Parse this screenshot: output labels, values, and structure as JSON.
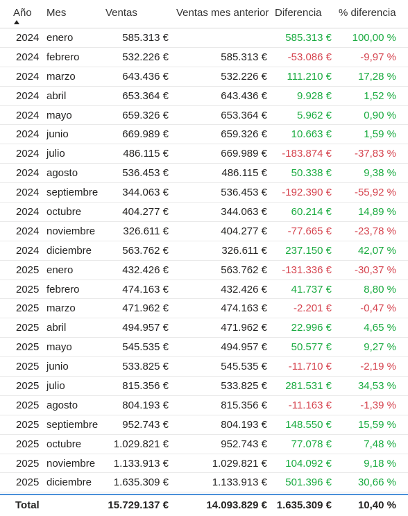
{
  "headers": {
    "ano": "Año",
    "mes": "Mes",
    "ventas": "Ventas",
    "ventas_anterior": "Ventas mes anterior",
    "diferencia": "Diferencia",
    "pct_diferencia": "% diferencia"
  },
  "rows": [
    {
      "ano": "2024",
      "mes": "enero",
      "ventas": "585.313 €",
      "anterior": "",
      "dif": "585.313 €",
      "pct": "100,00 %",
      "sign": "pos"
    },
    {
      "ano": "2024",
      "mes": "febrero",
      "ventas": "532.226 €",
      "anterior": "585.313 €",
      "dif": "-53.086 €",
      "pct": "-9,97 %",
      "sign": "neg"
    },
    {
      "ano": "2024",
      "mes": "marzo",
      "ventas": "643.436 €",
      "anterior": "532.226 €",
      "dif": "111.210 €",
      "pct": "17,28 %",
      "sign": "pos"
    },
    {
      "ano": "2024",
      "mes": "abril",
      "ventas": "653.364 €",
      "anterior": "643.436 €",
      "dif": "9.928 €",
      "pct": "1,52 %",
      "sign": "pos"
    },
    {
      "ano": "2024",
      "mes": "mayo",
      "ventas": "659.326 €",
      "anterior": "653.364 €",
      "dif": "5.962 €",
      "pct": "0,90 %",
      "sign": "pos"
    },
    {
      "ano": "2024",
      "mes": "junio",
      "ventas": "669.989 €",
      "anterior": "659.326 €",
      "dif": "10.663 €",
      "pct": "1,59 %",
      "sign": "pos"
    },
    {
      "ano": "2024",
      "mes": "julio",
      "ventas": "486.115 €",
      "anterior": "669.989 €",
      "dif": "-183.874 €",
      "pct": "-37,83 %",
      "sign": "neg"
    },
    {
      "ano": "2024",
      "mes": "agosto",
      "ventas": "536.453 €",
      "anterior": "486.115 €",
      "dif": "50.338 €",
      "pct": "9,38 %",
      "sign": "pos"
    },
    {
      "ano": "2024",
      "mes": "septiembre",
      "ventas": "344.063 €",
      "anterior": "536.453 €",
      "dif": "-192.390 €",
      "pct": "-55,92 %",
      "sign": "neg"
    },
    {
      "ano": "2024",
      "mes": "octubre",
      "ventas": "404.277 €",
      "anterior": "344.063 €",
      "dif": "60.214 €",
      "pct": "14,89 %",
      "sign": "pos"
    },
    {
      "ano": "2024",
      "mes": "noviembre",
      "ventas": "326.611 €",
      "anterior": "404.277 €",
      "dif": "-77.665 €",
      "pct": "-23,78 %",
      "sign": "neg"
    },
    {
      "ano": "2024",
      "mes": "diciembre",
      "ventas": "563.762 €",
      "anterior": "326.611 €",
      "dif": "237.150 €",
      "pct": "42,07 %",
      "sign": "pos"
    },
    {
      "ano": "2025",
      "mes": "enero",
      "ventas": "432.426 €",
      "anterior": "563.762 €",
      "dif": "-131.336 €",
      "pct": "-30,37 %",
      "sign": "neg"
    },
    {
      "ano": "2025",
      "mes": "febrero",
      "ventas": "474.163 €",
      "anterior": "432.426 €",
      "dif": "41.737 €",
      "pct": "8,80 %",
      "sign": "pos"
    },
    {
      "ano": "2025",
      "mes": "marzo",
      "ventas": "471.962 €",
      "anterior": "474.163 €",
      "dif": "-2.201 €",
      "pct": "-0,47 %",
      "sign": "neg"
    },
    {
      "ano": "2025",
      "mes": "abril",
      "ventas": "494.957 €",
      "anterior": "471.962 €",
      "dif": "22.996 €",
      "pct": "4,65 %",
      "sign": "pos"
    },
    {
      "ano": "2025",
      "mes": "mayo",
      "ventas": "545.535 €",
      "anterior": "494.957 €",
      "dif": "50.577 €",
      "pct": "9,27 %",
      "sign": "pos"
    },
    {
      "ano": "2025",
      "mes": "junio",
      "ventas": "533.825 €",
      "anterior": "545.535 €",
      "dif": "-11.710 €",
      "pct": "-2,19 %",
      "sign": "neg"
    },
    {
      "ano": "2025",
      "mes": "julio",
      "ventas": "815.356 €",
      "anterior": "533.825 €",
      "dif": "281.531 €",
      "pct": "34,53 %",
      "sign": "pos"
    },
    {
      "ano": "2025",
      "mes": "agosto",
      "ventas": "804.193 €",
      "anterior": "815.356 €",
      "dif": "-11.163 €",
      "pct": "-1,39 %",
      "sign": "neg"
    },
    {
      "ano": "2025",
      "mes": "septiembre",
      "ventas": "952.743 €",
      "anterior": "804.193 €",
      "dif": "148.550 €",
      "pct": "15,59 %",
      "sign": "pos"
    },
    {
      "ano": "2025",
      "mes": "octubre",
      "ventas": "1.029.821 €",
      "anterior": "952.743 €",
      "dif": "77.078 €",
      "pct": "7,48 %",
      "sign": "pos"
    },
    {
      "ano": "2025",
      "mes": "noviembre",
      "ventas": "1.133.913 €",
      "anterior": "1.029.821 €",
      "dif": "104.092 €",
      "pct": "9,18 %",
      "sign": "pos"
    },
    {
      "ano": "2025",
      "mes": "diciembre",
      "ventas": "1.635.309 €",
      "anterior": "1.133.913 €",
      "dif": "501.396 €",
      "pct": "30,66 %",
      "sign": "pos"
    }
  ],
  "total": {
    "label": "Total",
    "ventas": "15.729.137 €",
    "anterior": "14.093.829 €",
    "dif": "1.635.309 €",
    "pct": "10,40 %"
  },
  "colors": {
    "positive": "#1aab40",
    "negative": "#d64550",
    "total_border": "#4a90d9"
  },
  "sort": {
    "column": "ano",
    "direction": "ascending",
    "icon": "sort-ascending-icon"
  }
}
